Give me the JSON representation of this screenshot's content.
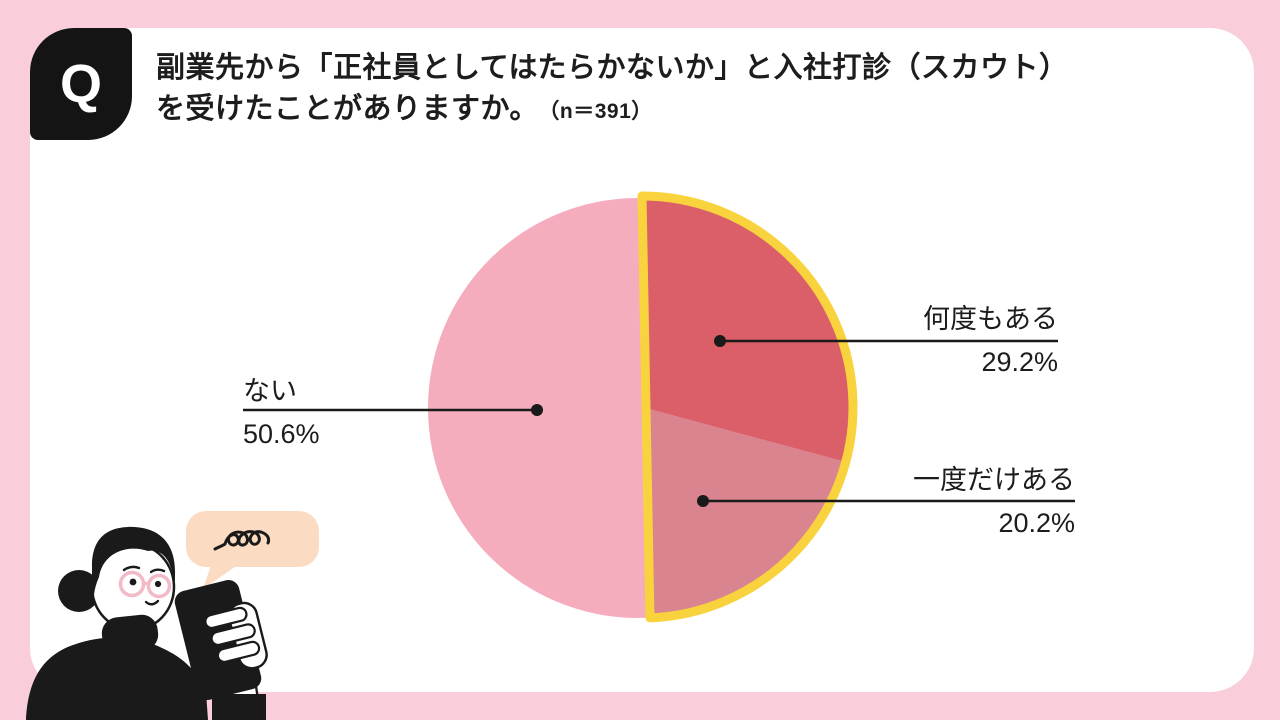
{
  "page": {
    "background_color": "#F9CEDA",
    "card_color": "#FFFFFF"
  },
  "question": {
    "badge": "Q",
    "line1": "副業先から「正社員としてはたらかないか」と入社打診（スカウト）",
    "line2": "を受けたことがありますか。",
    "sample_note": "（n＝391）"
  },
  "chart_data": {
    "type": "pie",
    "title": "副業先から「正社員としてはたらかないか」と入社打診（スカウト）を受けたことがありますか。",
    "sample_size": 391,
    "start_angle_deg": 0,
    "direction": "clockwise",
    "slices": [
      {
        "label": "何度もある",
        "value_pct": 29.2,
        "pct_label": "29.2%",
        "color": "#DB5F68",
        "highlighted": true
      },
      {
        "label": "一度だけある",
        "value_pct": 20.2,
        "pct_label": "20.2%",
        "color": "#DA8490",
        "highlighted": true
      },
      {
        "label": "ない",
        "value_pct": 50.6,
        "pct_label": "50.6%",
        "color": "#F5ACBC",
        "highlighted": false
      }
    ],
    "highlight_outline_color": "#F8D33E",
    "leader_color": "#1A1A1A",
    "legend": "none",
    "labels_position": "outside-with-leader-lines"
  },
  "illustration": {
    "speech_bubble_color": "#FBDCC3",
    "figure_color": "#1A1A1A",
    "skin_color": "#FFFFFF",
    "glasses_color": "#F2B9C6"
  }
}
